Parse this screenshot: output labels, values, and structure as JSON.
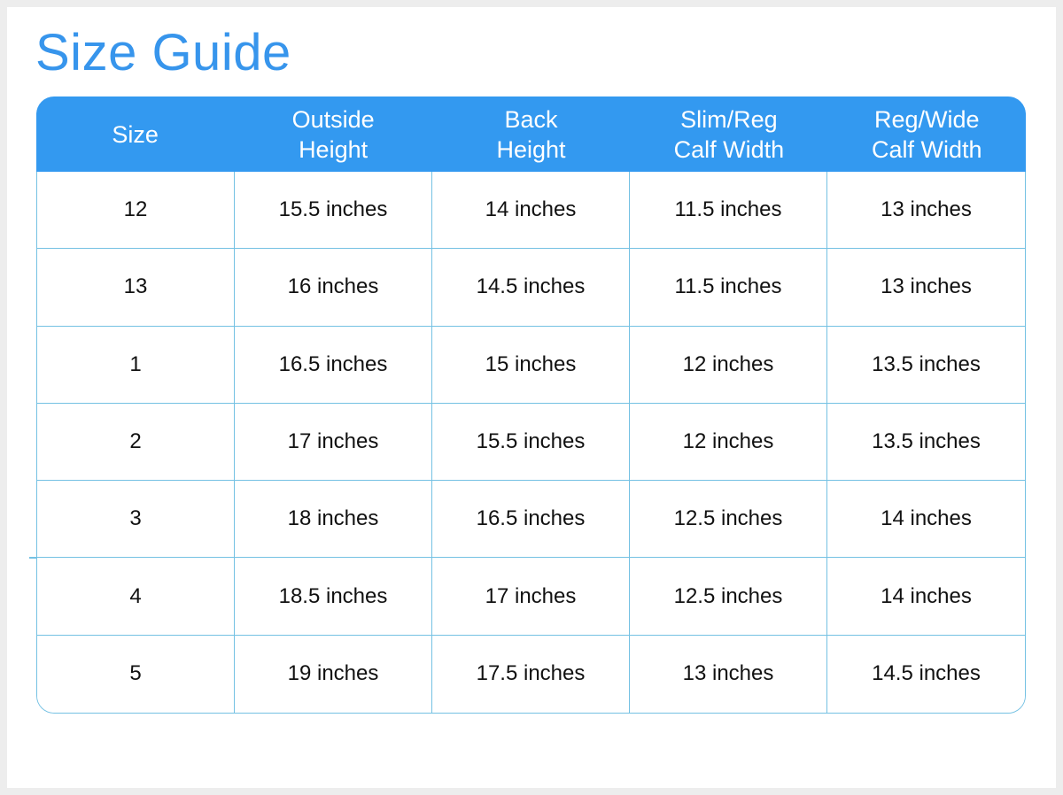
{
  "page": {
    "title": "Size Guide"
  },
  "chart_data": {
    "type": "table",
    "title": "Size Guide",
    "columns": [
      "Size",
      "Outside Height",
      "Back Height",
      "Slim/Reg Calf Width",
      "Reg/Wide Calf Width"
    ],
    "rows": [
      [
        "12",
        "15.5 inches",
        "14 inches",
        "11.5 inches",
        "13 inches"
      ],
      [
        "13",
        "16 inches",
        "14.5 inches",
        "11.5 inches",
        "13 inches"
      ],
      [
        "1",
        "16.5 inches",
        "15 inches",
        "12 inches",
        "13.5 inches"
      ],
      [
        "2",
        "17 inches",
        "15.5 inches",
        "12 inches",
        "13.5 inches"
      ],
      [
        "3",
        "18 inches",
        "16.5 inches",
        "12.5 inches",
        "14 inches"
      ],
      [
        "4",
        "18.5 inches",
        "17 inches",
        "12.5 inches",
        "14 inches"
      ],
      [
        "5",
        "19 inches",
        "17.5 inches",
        "13 inches",
        "14.5 inches"
      ]
    ]
  },
  "table": {
    "headers": [
      {
        "id": "size",
        "label": "Size"
      },
      {
        "id": "outside-height",
        "label": "Outside\nHeight"
      },
      {
        "id": "back-height",
        "label": "Back\nHeight"
      },
      {
        "id": "slim-reg-calf-width",
        "label": "Slim/Reg\nCalf Width"
      },
      {
        "id": "reg-wide-calf-width",
        "label": "Reg/Wide\nCalf Width"
      }
    ]
  },
  "colors": {
    "title_blue": "#3795ec",
    "header_bg": "#3399f0",
    "header_text": "#ffffff",
    "grid_line": "#74c1e3",
    "cell_text": "#111111",
    "page_frame": "#ededed"
  }
}
